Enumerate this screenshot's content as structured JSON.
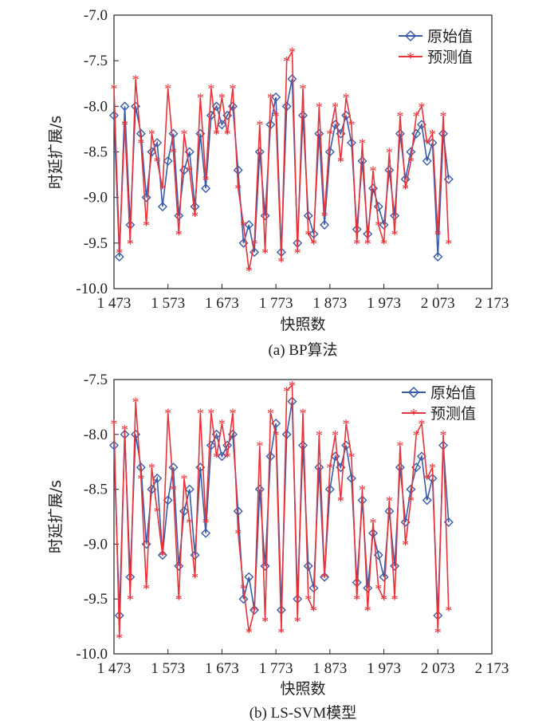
{
  "chart_data": [
    {
      "type": "line",
      "caption": "(a) BP算法",
      "xlabel": "快照数",
      "ylabel": "时延扩展/s",
      "xlim": [
        1473,
        2173
      ],
      "ylim": [
        -10.0,
        -7.0
      ],
      "xticks": [
        "1 473",
        "1 573",
        "1 673",
        "1 773",
        "1 873",
        "1 973",
        "2 073",
        "2 173"
      ],
      "yticks": [
        "-7.0",
        "-7.5",
        "-8.0",
        "-8.5",
        "-9.0",
        "-9.5",
        "-10.0"
      ],
      "legend_position": "top-right",
      "series": [
        {
          "name": "原始值",
          "color": "#3a5ca8",
          "marker": "diamond",
          "x": [
            1473,
            1483,
            1493,
            1503,
            1513,
            1523,
            1533,
            1543,
            1553,
            1563,
            1573,
            1583,
            1593,
            1603,
            1613,
            1623,
            1633,
            1643,
            1653,
            1663,
            1673,
            1683,
            1693,
            1703,
            1713,
            1723,
            1733,
            1743,
            1753,
            1763,
            1773,
            1783,
            1793,
            1803,
            1813,
            1823,
            1833,
            1843,
            1853,
            1863,
            1873,
            1883,
            1893,
            1903,
            1913,
            1923,
            1933,
            1943,
            1953,
            1963,
            1973,
            1983,
            1993,
            2003,
            2013,
            2023,
            2033,
            2043,
            2053,
            2063,
            2073,
            2083,
            2093
          ],
          "y": [
            -8.1,
            -9.65,
            -8.0,
            -9.3,
            -8.0,
            -8.3,
            -9.0,
            -8.5,
            -8.4,
            -9.1,
            -8.6,
            -8.3,
            -9.2,
            -8.7,
            -8.5,
            -9.1,
            -8.3,
            -8.9,
            -8.1,
            -8.0,
            -8.2,
            -8.1,
            -8.0,
            -8.7,
            -9.5,
            -9.3,
            -9.6,
            -8.5,
            -9.2,
            -8.2,
            -7.9,
            -9.6,
            -8.0,
            -7.7,
            -9.5,
            -8.1,
            -9.2,
            -9.4,
            -8.3,
            -9.3,
            -8.5,
            -8.2,
            -8.3,
            -8.1,
            -8.4,
            -9.35,
            -8.6,
            -9.4,
            -8.9,
            -9.1,
            -9.3,
            -8.7,
            -9.2,
            -8.3,
            -8.8,
            -8.5,
            -8.3,
            -8.2,
            -8.6,
            -8.4,
            -9.65,
            -8.3,
            -8.8
          ]
        },
        {
          "name": "预测值",
          "color": "#e8333a",
          "marker": "star",
          "x": [
            1473,
            1483,
            1493,
            1503,
            1513,
            1523,
            1533,
            1543,
            1553,
            1563,
            1573,
            1583,
            1593,
            1603,
            1613,
            1623,
            1633,
            1643,
            1653,
            1663,
            1673,
            1683,
            1693,
            1703,
            1713,
            1723,
            1733,
            1743,
            1753,
            1763,
            1773,
            1783,
            1793,
            1803,
            1813,
            1823,
            1833,
            1843,
            1853,
            1863,
            1873,
            1883,
            1893,
            1903,
            1913,
            1923,
            1933,
            1943,
            1953,
            1963,
            1973,
            1983,
            1993,
            2003,
            2013,
            2023,
            2033,
            2043,
            2053,
            2063,
            2073,
            2083,
            2093
          ],
          "y": [
            -7.8,
            -9.6,
            -8.2,
            -9.5,
            -7.7,
            -8.4,
            -9.3,
            -8.3,
            -8.6,
            -8.9,
            -7.8,
            -8.5,
            -9.4,
            -8.3,
            -8.7,
            -9.2,
            -7.9,
            -8.8,
            -7.8,
            -8.3,
            -7.9,
            -8.3,
            -7.8,
            -8.9,
            -9.3,
            -9.8,
            -9.5,
            -8.2,
            -9.6,
            -7.9,
            -8.1,
            -9.7,
            -7.5,
            -7.4,
            -9.6,
            -7.8,
            -9.4,
            -9.5,
            -8.0,
            -9.2,
            -8.3,
            -8.0,
            -8.6,
            -7.9,
            -8.2,
            -9.5,
            -8.4,
            -9.5,
            -8.7,
            -9.3,
            -9.5,
            -8.5,
            -9.4,
            -8.1,
            -8.9,
            -8.6,
            -8.1,
            -8.0,
            -8.4,
            -8.3,
            -9.4,
            -8.1,
            -9.5
          ]
        }
      ]
    },
    {
      "type": "line",
      "caption": "(b) LS-SVM模型",
      "xlabel": "快照数",
      "ylabel": "时延扩展/s",
      "xlim": [
        1473,
        2173
      ],
      "ylim": [
        -10.0,
        -7.5
      ],
      "xticks": [
        "1 473",
        "1 573",
        "1 673",
        "1 773",
        "1 873",
        "1 973",
        "2 073",
        "2 173"
      ],
      "yticks": [
        "-7.5",
        "-8.0",
        "-8.5",
        "-9.0",
        "-9.5",
        "-10.0"
      ],
      "legend_position": "top-right",
      "series": [
        {
          "name": "原始值",
          "color": "#3a5ca8",
          "marker": "diamond",
          "x": [
            1473,
            1483,
            1493,
            1503,
            1513,
            1523,
            1533,
            1543,
            1553,
            1563,
            1573,
            1583,
            1593,
            1603,
            1613,
            1623,
            1633,
            1643,
            1653,
            1663,
            1673,
            1683,
            1693,
            1703,
            1713,
            1723,
            1733,
            1743,
            1753,
            1763,
            1773,
            1783,
            1793,
            1803,
            1813,
            1823,
            1833,
            1843,
            1853,
            1863,
            1873,
            1883,
            1893,
            1903,
            1913,
            1923,
            1933,
            1943,
            1953,
            1963,
            1973,
            1983,
            1993,
            2003,
            2013,
            2023,
            2033,
            2043,
            2053,
            2063,
            2073,
            2083,
            2093
          ],
          "y": [
            -8.1,
            -9.65,
            -8.0,
            -9.3,
            -8.0,
            -8.3,
            -9.0,
            -8.5,
            -8.4,
            -9.1,
            -8.6,
            -8.3,
            -9.2,
            -8.7,
            -8.5,
            -9.1,
            -8.3,
            -8.9,
            -8.1,
            -8.0,
            -8.2,
            -8.1,
            -8.0,
            -8.7,
            -9.5,
            -9.3,
            -9.6,
            -8.5,
            -9.2,
            -8.2,
            -7.9,
            -9.6,
            -8.0,
            -7.7,
            -9.5,
            -8.1,
            -9.2,
            -9.4,
            -8.3,
            -9.3,
            -8.5,
            -8.2,
            -8.3,
            -8.1,
            -8.4,
            -9.35,
            -8.6,
            -9.4,
            -8.9,
            -9.1,
            -9.3,
            -8.7,
            -9.2,
            -8.3,
            -8.8,
            -8.5,
            -8.3,
            -8.2,
            -8.6,
            -8.4,
            -9.65,
            -8.1,
            -8.8
          ]
        },
        {
          "name": "预测值",
          "color": "#e8333a",
          "marker": "star",
          "x": [
            1473,
            1483,
            1493,
            1503,
            1513,
            1523,
            1533,
            1543,
            1553,
            1563,
            1573,
            1583,
            1593,
            1603,
            1613,
            1623,
            1633,
            1643,
            1653,
            1663,
            1673,
            1683,
            1693,
            1703,
            1713,
            1723,
            1733,
            1743,
            1753,
            1763,
            1773,
            1783,
            1793,
            1803,
            1813,
            1823,
            1833,
            1843,
            1853,
            1863,
            1873,
            1883,
            1893,
            1903,
            1913,
            1923,
            1933,
            1943,
            1953,
            1963,
            1973,
            1983,
            1993,
            2003,
            2013,
            2023,
            2033,
            2043,
            2053,
            2063,
            2073,
            2083,
            2093
          ],
          "y": [
            -7.9,
            -9.85,
            -7.95,
            -9.5,
            -7.7,
            -8.4,
            -9.4,
            -8.3,
            -8.7,
            -9.1,
            -7.8,
            -8.5,
            -9.5,
            -8.4,
            -8.8,
            -9.3,
            -7.8,
            -8.8,
            -7.8,
            -8.2,
            -7.9,
            -8.2,
            -7.8,
            -8.9,
            -9.4,
            -9.8,
            -9.6,
            -8.1,
            -9.7,
            -7.8,
            -8.0,
            -9.8,
            -7.6,
            -7.55,
            -9.7,
            -7.8,
            -9.5,
            -9.6,
            -8.0,
            -9.3,
            -8.3,
            -8.0,
            -8.6,
            -7.9,
            -8.2,
            -9.5,
            -8.5,
            -9.6,
            -8.8,
            -9.4,
            -9.5,
            -8.6,
            -9.5,
            -8.1,
            -9.0,
            -8.6,
            -8.0,
            -7.9,
            -8.4,
            -8.3,
            -9.8,
            -8.0,
            -9.6
          ]
        }
      ]
    }
  ]
}
